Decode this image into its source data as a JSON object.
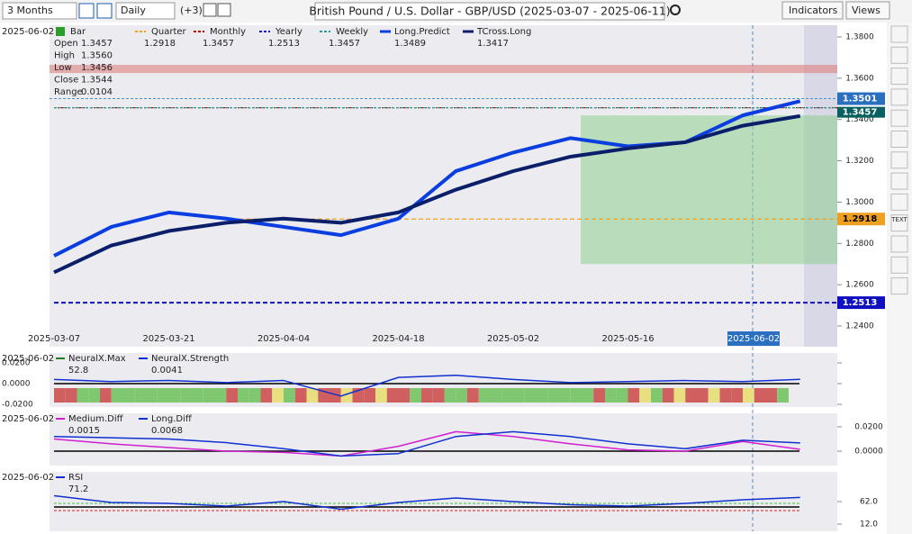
{
  "toolbar": {
    "range": "3 Months",
    "interval": "Daily",
    "extra": "(+3)",
    "title": "British Pound / U.S. Dollar - GBP/USD (2025-03-07 - 2025-06-11)",
    "indicators": "Indicators",
    "views": "Views",
    "text_tool": "TEXT"
  },
  "main": {
    "date": "2025-06-02",
    "bar_label": "Bar",
    "ohlc": [
      {
        "name": "Open",
        "value": 1.3457
      },
      {
        "name": "High",
        "value": 1.356
      },
      {
        "name": "Low",
        "value": 1.3456
      },
      {
        "name": "Close",
        "value": 1.3544
      },
      {
        "name": "Range",
        "value": 0.0104
      }
    ],
    "ohlc_labels": [
      "1.3457",
      "1.3560",
      "1.3456",
      "1.3544",
      "0.0104"
    ],
    "levels": [
      {
        "name": "Quarter",
        "value": 1.2918,
        "color": "#f0a020"
      },
      {
        "name": "Monthly",
        "value": 1.3457,
        "color": "#c00000"
      },
      {
        "name": "Yearly",
        "value": 1.2513,
        "color": "#1010c0"
      },
      {
        "name": "Weekly",
        "value": 1.3457,
        "color": "#20a090"
      }
    ],
    "series": [
      {
        "name": "Long.Predict",
        "value": 1.3489,
        "color": "#0a3ee0",
        "values": [
          1.274,
          1.288,
          1.295,
          1.292,
          1.288,
          1.284,
          1.292,
          1.315,
          1.324,
          1.331,
          1.327,
          1.329,
          1.342,
          1.3489
        ]
      },
      {
        "name": "TCross.Long",
        "value": 1.3417,
        "color": "#0a1e6a",
        "values": [
          1.266,
          1.279,
          1.286,
          1.29,
          1.292,
          1.29,
          1.295,
          1.306,
          1.315,
          1.322,
          1.326,
          1.329,
          1.337,
          1.3417
        ]
      }
    ],
    "current": 1.3501,
    "yticks": [
      {
        "value": 1.38,
        "label": "1.3800"
      },
      {
        "value": 1.36,
        "label": "1.3600"
      },
      {
        "value": 1.34,
        "label": "1.3400"
      },
      {
        "value": 1.32,
        "label": "1.3200"
      },
      {
        "value": 1.3,
        "label": "1.3000"
      },
      {
        "value": 1.28,
        "label": "1.2800"
      },
      {
        "value": 1.26,
        "label": "1.2600"
      },
      {
        "value": 1.24,
        "label": "1.2400"
      }
    ],
    "xticks": [
      "2025-03-07",
      "2025-03-21",
      "2025-04-04",
      "2025-04-18",
      "2025-05-02",
      "2025-05-16"
    ]
  },
  "panels": [
    {
      "date": "2025-06-02",
      "legend": [
        {
          "name": "NeuralX.Max",
          "value": 52.8,
          "color": "#208020"
        },
        {
          "name": "NeuralX.Strength",
          "value": 0.0041,
          "color": "#1030d0"
        }
      ],
      "series": [
        {
          "name": "NeuralX.Strength",
          "color": "#1030d0",
          "values": [
            0.004,
            0.002,
            0.003,
            0.001,
            0.003,
            -0.012,
            0.006,
            0.008,
            0.004,
            0.001,
            0.002,
            0.003,
            0.002,
            0.0041
          ]
        }
      ],
      "yticks": [
        {
          "value": 0.02,
          "label": "0.0200"
        },
        {
          "value": 0,
          "label": "0.0000"
        },
        {
          "value": -0.02,
          "label": "-0.0200"
        }
      ]
    },
    {
      "date": "2025-06-02",
      "legend": [
        {
          "name": "Medium.Diff",
          "value": 0.0015,
          "color": "#d020d0"
        },
        {
          "name": "Long.Diff",
          "value": 0.0068,
          "color": "#1030d0"
        }
      ],
      "series": [
        {
          "name": "Medium.Diff",
          "color": "#d020d0",
          "values": [
            0.01,
            0.006,
            0.003,
            0,
            -0.001,
            -0.004,
            0.004,
            0.016,
            0.012,
            0.006,
            0.001,
            0,
            0.008,
            0.0015
          ]
        },
        {
          "name": "Long.Diff",
          "color": "#1030d0",
          "values": [
            0.012,
            0.011,
            0.01,
            0.007,
            0.002,
            -0.004,
            -0.002,
            0.012,
            0.016,
            0.012,
            0.006,
            0.002,
            0.009,
            0.0068
          ]
        }
      ],
      "yticks": [
        {
          "value": 0.02,
          "label": "0.0200"
        },
        {
          "value": 0,
          "label": "0.0000"
        }
      ]
    },
    {
      "date": "2025-06-02",
      "legend": [
        {
          "name": "RSI",
          "value": 71.2,
          "color": "#1030d0"
        }
      ],
      "series": [
        {
          "name": "RSI",
          "color": "#1030d0",
          "values": [
            75,
            60,
            58,
            52,
            62,
            45,
            60,
            70,
            62,
            55,
            52,
            58,
            66,
            71.2
          ]
        }
      ],
      "yticks": [
        {
          "value": 62,
          "label": "62.0"
        },
        {
          "value": 12,
          "label": "12.0"
        }
      ]
    }
  ]
}
